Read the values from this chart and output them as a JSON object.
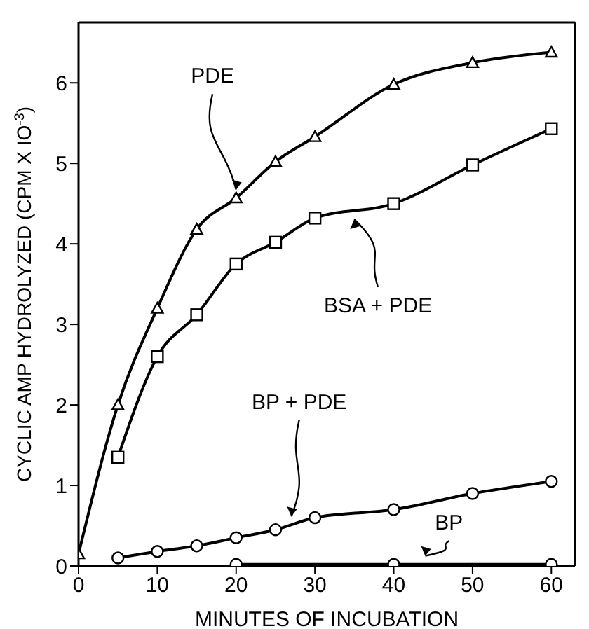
{
  "chart_data": {
    "type": "line",
    "xlabel": "MINUTES OF INCUBATION",
    "ylabel": "CYCLIC AMP HYDROLYZED (CPM X IO$^{-3}$)",
    "x": [
      0,
      5,
      10,
      15,
      20,
      25,
      30,
      40,
      50,
      60
    ],
    "series": [
      {
        "name": "PDE",
        "color": "#000000",
        "marker": "triangle",
        "values": [
          0.15,
          2.0,
          3.2,
          4.18,
          4.57,
          5.02,
          5.33,
          5.98,
          6.25,
          6.38
        ]
      },
      {
        "name": "BSA + PDE",
        "color": "#000000",
        "marker": "square",
        "values": [
          null,
          1.35,
          2.6,
          3.12,
          3.75,
          4.02,
          4.32,
          4.5,
          4.98,
          5.43
        ]
      },
      {
        "name": "BP + PDE",
        "color": "#000000",
        "marker": "circle",
        "values": [
          null,
          0.1,
          0.18,
          0.25,
          0.35,
          0.45,
          0.6,
          0.7,
          0.9,
          1.05
        ]
      },
      {
        "name": "BP",
        "color": "#000000",
        "marker": "circle",
        "values": [
          null,
          null,
          null,
          null,
          0.02,
          null,
          null,
          0.02,
          null,
          0.02
        ]
      }
    ],
    "xlim": [
      0,
      63
    ],
    "ylim": [
      0,
      6.75
    ],
    "xticks": [
      0,
      10,
      20,
      30,
      40,
      50,
      60
    ],
    "yticks": [
      0,
      1,
      2,
      3,
      4,
      5,
      6
    ],
    "line_style": "solid"
  }
}
